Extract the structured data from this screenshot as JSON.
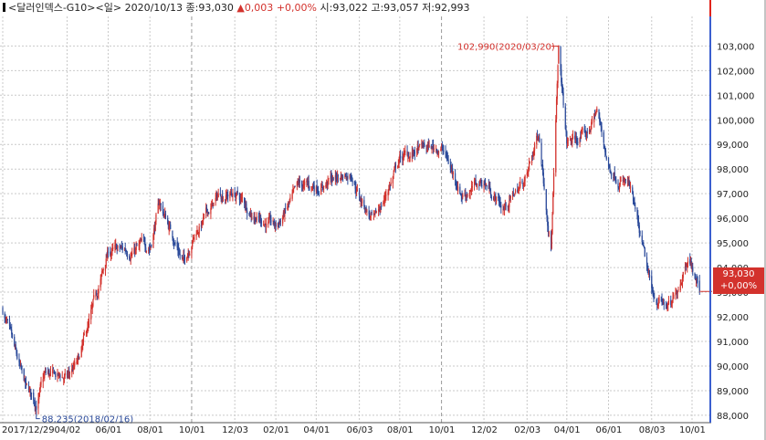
{
  "header": {
    "symbol_label": "<달러인덱스-G10>",
    "period_label": "<일>",
    "date": "2020/10/13",
    "close_label": "종",
    "close_value": "93,030",
    "change_arrow": "▲",
    "change_value": "0,003",
    "change_pct": "+0,00%",
    "open_label": "시",
    "open_value": "93,022",
    "high_label": "고",
    "high_value": "93,057",
    "low_label": "저",
    "low_value": "92,993"
  },
  "last_price": {
    "value": "93,030",
    "change_pct": "+0,00%"
  },
  "colors": {
    "up": "#d3322d",
    "down": "#2b4a9a",
    "grid": "#c9c9c9",
    "axis_line": "#3a5fcf",
    "right_border": "#e0241b"
  },
  "chart_data": {
    "type": "candlestick",
    "xlabel": "",
    "ylabel": "",
    "ylim": [
      87.7,
      104.2
    ],
    "grid": true,
    "x_tick_labels": [
      "2017/12/29",
      "04/02",
      "06/01",
      "08/01",
      "10/01",
      "12/03",
      "02/01",
      "04/01",
      "06/03",
      "08/01",
      "10/01",
      "12/02",
      "02/03",
      "04/01",
      "06/01",
      "08/03",
      "10/01"
    ],
    "y_tick_labels": [
      "88,000",
      "89,000",
      "90,000",
      "91,000",
      "92,000",
      "93,000",
      "94,000",
      "95,000",
      "96,000",
      "97,000",
      "98,000",
      "99,000",
      "100,000",
      "101,000",
      "102,000",
      "103,000"
    ],
    "y_ticks": [
      88,
      89,
      90,
      91,
      92,
      93,
      94,
      95,
      96,
      97,
      98,
      99,
      100,
      101,
      102,
      103
    ],
    "annotations": [
      {
        "label": "102,990(2020/03/20)",
        "date": "2020-03-20",
        "value": 102.99,
        "kind": "high"
      },
      {
        "label": "88,235(2018/02/16)",
        "date": "2018-02-16",
        "value": 88.235,
        "kind": "low"
      }
    ],
    "close_series": {
      "dates": [
        "2017-12-29",
        "2018-01-15",
        "2018-02-01",
        "2018-02-16",
        "2018-03-01",
        "2018-04-02",
        "2018-04-20",
        "2018-05-15",
        "2018-06-01",
        "2018-07-02",
        "2018-08-01",
        "2018-08-15",
        "2018-09-20",
        "2018-10-01",
        "2018-11-12",
        "2018-12-03",
        "2018-12-31",
        "2019-02-01",
        "2019-03-07",
        "2019-04-01",
        "2019-05-23",
        "2019-06-03",
        "2019-06-25",
        "2019-08-01",
        "2019-09-03",
        "2019-10-01",
        "2019-10-31",
        "2019-12-02",
        "2019-12-31",
        "2020-02-03",
        "2020-02-20",
        "2020-03-09",
        "2020-03-20",
        "2020-04-01",
        "2020-05-01",
        "2020-05-15",
        "2020-06-01",
        "2020-07-01",
        "2020-08-03",
        "2020-09-01",
        "2020-09-25",
        "2020-10-13"
      ],
      "values": [
        92.3,
        90.5,
        89.0,
        88.5,
        89.6,
        89.5,
        90.2,
        92.8,
        94.6,
        94.7,
        94.9,
        96.6,
        94.2,
        95.2,
        97.0,
        97.0,
        96.2,
        95.6,
        97.2,
        97.3,
        97.9,
        96.9,
        95.8,
        98.4,
        98.8,
        98.9,
        97.0,
        97.5,
        96.4,
        97.7,
        99.5,
        94.9,
        102.7,
        99.0,
        99.4,
        100.4,
        98.1,
        97.3,
        92.9,
        92.3,
        94.6,
        93.03
      ]
    }
  }
}
